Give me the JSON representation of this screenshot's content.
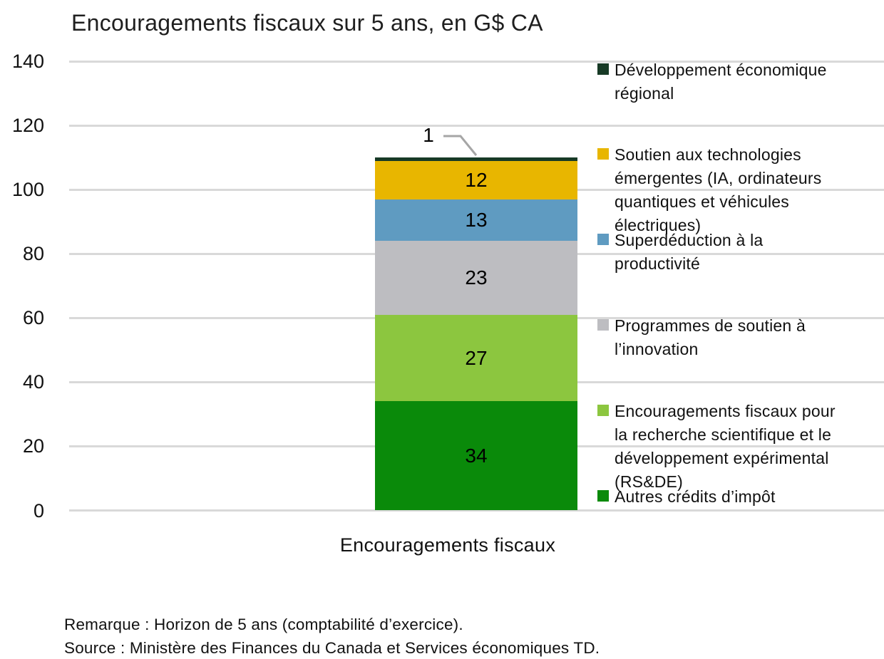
{
  "title": "Encouragements fiscaux sur 5 ans, en G$ CA",
  "chart_data": {
    "type": "bar",
    "stacked": true,
    "title": "Encouragements fiscaux sur 5 ans, en G$ CA",
    "categories": [
      "Encouragements fiscaux"
    ],
    "xlabel": "Encouragements fiscaux",
    "ylabel": "",
    "ylim": [
      0,
      140
    ],
    "yticks": [
      0,
      20,
      40,
      60,
      80,
      100,
      120,
      140
    ],
    "grid": true,
    "legend_position": "right",
    "total": 110,
    "series": [
      {
        "name": "Autres crédits d’impôt",
        "values": [
          34
        ],
        "color": "#0a8a0a"
      },
      {
        "name": "Encouragements fiscaux pour la recherche scientifique et le développement expérimental (RS&DE)",
        "values": [
          27
        ],
        "color": "#8cc63f"
      },
      {
        "name": "Programmes de soutien à l’innovation",
        "values": [
          23
        ],
        "color": "#bdbdc1"
      },
      {
        "name": "Superdéduction à la productivité",
        "values": [
          13
        ],
        "color": "#5f9bc1"
      },
      {
        "name": "Soutien aux technologies émergentes (IA, ordinateurs quantiques et véhicules électriques)",
        "values": [
          12
        ],
        "color": "#e8b600"
      },
      {
        "name": "Développement économique régional",
        "values": [
          1
        ],
        "color": "#173a26"
      }
    ]
  },
  "legend": {
    "items": [
      {
        "label": "Développement économique\nrégional",
        "color": "#173a26"
      },
      {
        "label": "Soutien aux technologies\némergentes (IA, ordinateurs\nquantiques et véhicules\nélectriques)",
        "color": "#e8b600"
      },
      {
        "label": "Superdéduction à la\nproductivité",
        "color": "#5f9bc1"
      },
      {
        "label": "Programmes de soutien à\nl’innovation",
        "color": "#bdbdc1"
      },
      {
        "label": "Encouragements fiscaux pour\nla recherche scientifique et le\ndéveloppement expérimental\n(RS&DE)",
        "color": "#8cc63f"
      },
      {
        "label": "Autres crédits d’impôt",
        "color": "#0a8a0a"
      }
    ]
  },
  "notes": {
    "remark": "Remarque : Horizon de 5 ans (comptabilité d’exercice).",
    "source": "Source : Ministère des Finances du Canada et Services économiques TD."
  },
  "colors": {
    "gridline": "#d9d9d9",
    "callout": "#a6a6a6",
    "text": "#111111"
  }
}
